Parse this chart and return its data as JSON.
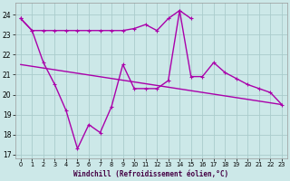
{
  "x": [
    0,
    1,
    2,
    3,
    4,
    5,
    6,
    7,
    8,
    9,
    10,
    11,
    12,
    13,
    14,
    15,
    16,
    17,
    18,
    19,
    20,
    21,
    22,
    23
  ],
  "line1": [
    23.8,
    23.2,
    23.2,
    23.2,
    23.2,
    23.2,
    23.2,
    23.2,
    23.2,
    23.2,
    23.3,
    23.5,
    23.2,
    23.8,
    24.2,
    23.8,
    null,
    null,
    null,
    null,
    null,
    null,
    null,
    null
  ],
  "line2": [
    23.8,
    23.2,
    21.6,
    20.5,
    19.2,
    17.3,
    18.5,
    18.1,
    19.4,
    21.5,
    20.3,
    20.3,
    20.3,
    20.7,
    24.2,
    20.9,
    20.9,
    21.6,
    21.1,
    20.8,
    20.5,
    20.3,
    20.1,
    19.5
  ],
  "line3_x": [
    0,
    23
  ],
  "line3_y": [
    21.5,
    19.5
  ],
  "line_color": "#aa00aa",
  "bg_color": "#cce8e8",
  "grid_color": "#aacccc",
  "xlabel": "Windchill (Refroidissement éolien,°C)",
  "ylim": [
    16.8,
    24.6
  ],
  "yticks": [
    17,
    18,
    19,
    20,
    21,
    22,
    23,
    24
  ],
  "xlim": [
    -0.5,
    23.5
  ],
  "xticks": [
    0,
    1,
    2,
    3,
    4,
    5,
    6,
    7,
    8,
    9,
    10,
    11,
    12,
    13,
    14,
    15,
    16,
    17,
    18,
    19,
    20,
    21,
    22,
    23
  ]
}
